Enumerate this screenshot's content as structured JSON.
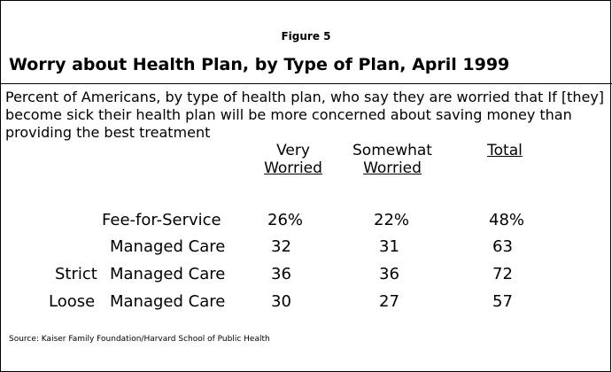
{
  "chart_data": {
    "type": "table",
    "figure_label": "Figure 5",
    "title": "Worry about Health Plan, by Type of Plan, April 1999",
    "subtitle": "Percent of Americans, by type of health plan, who say they are worried that If [they] become sick their health plan will be more concerned about saving money than providing the best treatment",
    "columns": [
      {
        "top": "Very",
        "bottom": "Worried"
      },
      {
        "top": "Somewhat",
        "bottom": "Worried"
      },
      {
        "top": "",
        "bottom": "Total"
      }
    ],
    "rows": [
      {
        "qualifier": "",
        "label": "Fee-for-Service",
        "values": [
          "26%",
          "22%",
          "48%"
        ]
      },
      {
        "qualifier": "",
        "label": "Managed Care",
        "values": [
          "32",
          "31",
          "63"
        ]
      },
      {
        "qualifier": "Strict",
        "label": "Managed Care",
        "values": [
          "36",
          "36",
          "72"
        ]
      },
      {
        "qualifier": "Loose",
        "label": "Managed Care",
        "values": [
          "30",
          "27",
          "57"
        ]
      }
    ],
    "source": "Source: Kaiser Family Foundation/Harvard School of Public Health"
  }
}
